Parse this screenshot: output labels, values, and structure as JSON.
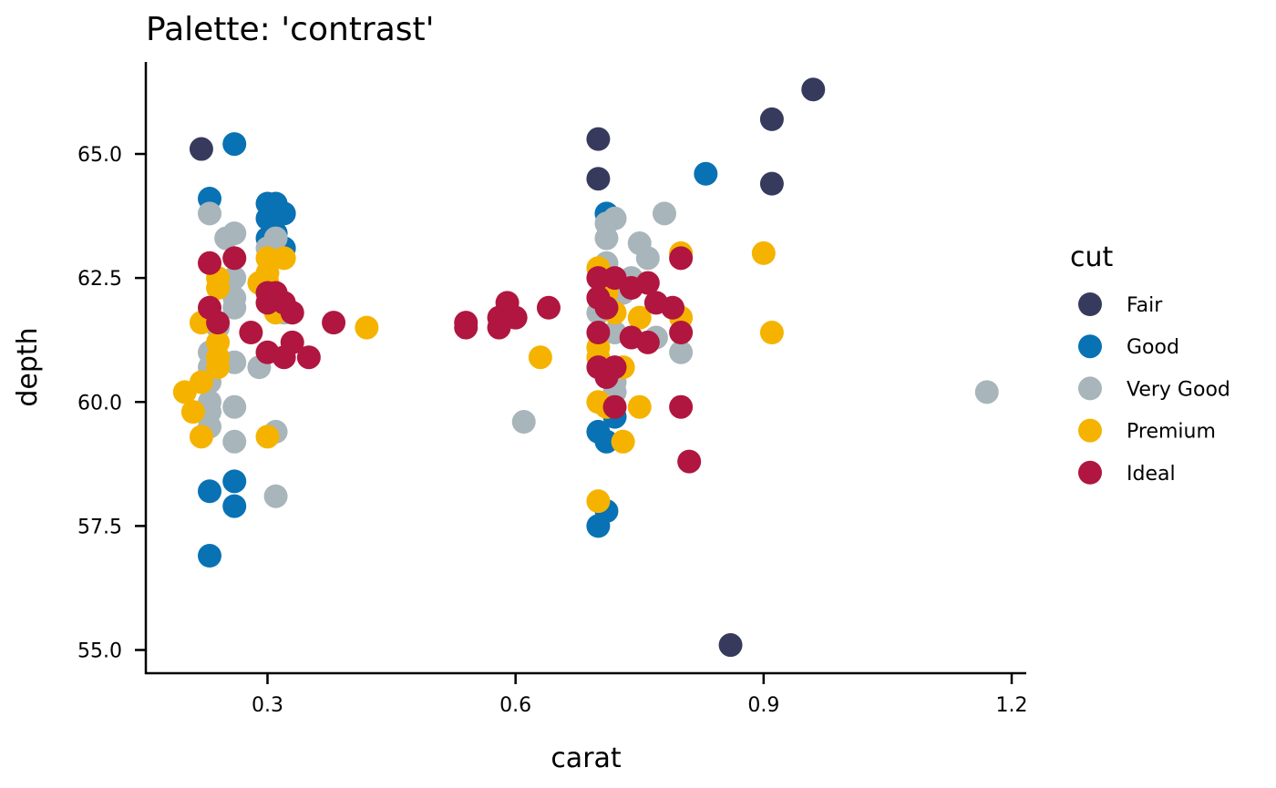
{
  "chart_data": {
    "type": "scatter",
    "title": "Palette: 'contrast'",
    "xlabel": "carat",
    "ylabel": "depth",
    "xlim": [
      0.15,
      1.22
    ],
    "ylim": [
      54.6,
      66.7
    ],
    "x_ticks": [
      0.3,
      0.6,
      0.9,
      1.2
    ],
    "x_tick_labels": [
      "0.3",
      "0.6",
      "0.9",
      "1.2"
    ],
    "y_ticks": [
      55.0,
      57.5,
      60.0,
      62.5,
      65.0
    ],
    "y_tick_labels": [
      "55.0",
      "57.5",
      "60.0",
      "62.5",
      "65.0"
    ],
    "grid": false,
    "legend": {
      "title": "cut",
      "position": "right"
    },
    "series": [
      {
        "name": "Fair",
        "color": "#363b5e",
        "points": [
          [
            0.22,
            65.1
          ],
          [
            0.7,
            65.3
          ],
          [
            0.7,
            64.5
          ],
          [
            0.91,
            65.7
          ],
          [
            0.96,
            66.3
          ],
          [
            0.91,
            64.4
          ],
          [
            0.86,
            55.1
          ]
        ]
      },
      {
        "name": "Good",
        "color": "#0872b4",
        "points": [
          [
            0.26,
            65.2
          ],
          [
            0.23,
            64.1
          ],
          [
            0.3,
            64.0
          ],
          [
            0.31,
            64.0
          ],
          [
            0.3,
            63.7
          ],
          [
            0.32,
            63.8
          ],
          [
            0.31,
            63.4
          ],
          [
            0.3,
            63.3
          ],
          [
            0.32,
            63.1
          ],
          [
            0.83,
            64.6
          ],
          [
            0.71,
            63.8
          ],
          [
            0.23,
            58.2
          ],
          [
            0.26,
            58.4
          ],
          [
            0.26,
            57.9
          ],
          [
            0.23,
            56.9
          ],
          [
            0.7,
            59.4
          ],
          [
            0.71,
            59.2
          ],
          [
            0.72,
            59.7
          ],
          [
            0.7,
            57.5
          ],
          [
            0.71,
            57.8
          ]
        ]
      },
      {
        "name": "Very Good",
        "color": "#a8b5ba",
        "points": [
          [
            0.23,
            63.8
          ],
          [
            0.25,
            63.3
          ],
          [
            0.26,
            63.4
          ],
          [
            0.26,
            62.9
          ],
          [
            0.26,
            62.5
          ],
          [
            0.26,
            62.1
          ],
          [
            0.26,
            61.9
          ],
          [
            0.24,
            61.5
          ],
          [
            0.23,
            61.0
          ],
          [
            0.23,
            60.7
          ],
          [
            0.24,
            60.9
          ],
          [
            0.26,
            60.8
          ],
          [
            0.29,
            60.7
          ],
          [
            0.23,
            60.4
          ],
          [
            0.23,
            60.0
          ],
          [
            0.23,
            59.8
          ],
          [
            0.23,
            59.5
          ],
          [
            0.26,
            59.9
          ],
          [
            0.26,
            59.2
          ],
          [
            0.31,
            59.4
          ],
          [
            0.31,
            58.1
          ],
          [
            0.31,
            63.3
          ],
          [
            0.3,
            63.1
          ],
          [
            0.32,
            61.8
          ],
          [
            0.71,
            63.6
          ],
          [
            0.72,
            63.7
          ],
          [
            0.71,
            63.3
          ],
          [
            0.71,
            62.8
          ],
          [
            0.75,
            63.2
          ],
          [
            0.76,
            62.9
          ],
          [
            0.78,
            63.8
          ],
          [
            0.73,
            62.2
          ],
          [
            0.74,
            62.5
          ],
          [
            0.7,
            61.8
          ],
          [
            0.72,
            61.4
          ],
          [
            0.74,
            61.3
          ],
          [
            0.77,
            61.3
          ],
          [
            0.8,
            61.0
          ],
          [
            0.72,
            60.4
          ],
          [
            0.72,
            60.2
          ],
          [
            0.61,
            59.6
          ],
          [
            1.17,
            60.2
          ]
        ]
      },
      {
        "name": "Premium",
        "color": "#f5b300",
        "points": [
          [
            0.24,
            62.5
          ],
          [
            0.24,
            62.3
          ],
          [
            0.22,
            61.6
          ],
          [
            0.24,
            61.2
          ],
          [
            0.24,
            60.9
          ],
          [
            0.24,
            60.7
          ],
          [
            0.22,
            60.4
          ],
          [
            0.2,
            60.2
          ],
          [
            0.21,
            59.8
          ],
          [
            0.22,
            59.3
          ],
          [
            0.3,
            62.9
          ],
          [
            0.32,
            62.9
          ],
          [
            0.3,
            62.6
          ],
          [
            0.3,
            62.4
          ],
          [
            0.29,
            62.4
          ],
          [
            0.31,
            61.8
          ],
          [
            0.3,
            59.3
          ],
          [
            0.42,
            61.5
          ],
          [
            0.63,
            60.9
          ],
          [
            0.7,
            62.7
          ],
          [
            0.71,
            62.5
          ],
          [
            0.71,
            62.2
          ],
          [
            0.72,
            61.8
          ],
          [
            0.7,
            61.1
          ],
          [
            0.7,
            60.9
          ],
          [
            0.73,
            60.7
          ],
          [
            0.7,
            60.0
          ],
          [
            0.71,
            59.9
          ],
          [
            0.75,
            59.9
          ],
          [
            0.73,
            59.2
          ],
          [
            0.75,
            61.7
          ],
          [
            0.7,
            58.0
          ],
          [
            0.8,
            63.0
          ],
          [
            0.8,
            61.7
          ],
          [
            0.9,
            63.0
          ],
          [
            0.91,
            61.4
          ]
        ]
      },
      {
        "name": "Ideal",
        "color": "#b0163f",
        "points": [
          [
            0.23,
            62.8
          ],
          [
            0.26,
            62.9
          ],
          [
            0.23,
            61.9
          ],
          [
            0.24,
            61.6
          ],
          [
            0.28,
            61.4
          ],
          [
            0.3,
            62.2
          ],
          [
            0.31,
            62.2
          ],
          [
            0.3,
            62.0
          ],
          [
            0.32,
            62.0
          ],
          [
            0.33,
            61.8
          ],
          [
            0.3,
            61.0
          ],
          [
            0.32,
            60.9
          ],
          [
            0.33,
            61.2
          ],
          [
            0.35,
            60.9
          ],
          [
            0.38,
            61.6
          ],
          [
            0.54,
            61.6
          ],
          [
            0.54,
            61.5
          ],
          [
            0.58,
            61.7
          ],
          [
            0.58,
            61.5
          ],
          [
            0.59,
            62.0
          ],
          [
            0.6,
            61.7
          ],
          [
            0.64,
            61.9
          ],
          [
            0.7,
            62.5
          ],
          [
            0.7,
            62.1
          ],
          [
            0.71,
            61.9
          ],
          [
            0.72,
            62.5
          ],
          [
            0.74,
            62.3
          ],
          [
            0.76,
            62.4
          ],
          [
            0.77,
            62.0
          ],
          [
            0.79,
            61.9
          ],
          [
            0.7,
            61.4
          ],
          [
            0.74,
            61.3
          ],
          [
            0.76,
            61.2
          ],
          [
            0.8,
            61.4
          ],
          [
            0.7,
            60.7
          ],
          [
            0.71,
            60.5
          ],
          [
            0.72,
            60.7
          ],
          [
            0.72,
            59.9
          ],
          [
            0.8,
            62.9
          ],
          [
            0.8,
            59.9
          ],
          [
            0.81,
            58.8
          ]
        ]
      }
    ]
  }
}
